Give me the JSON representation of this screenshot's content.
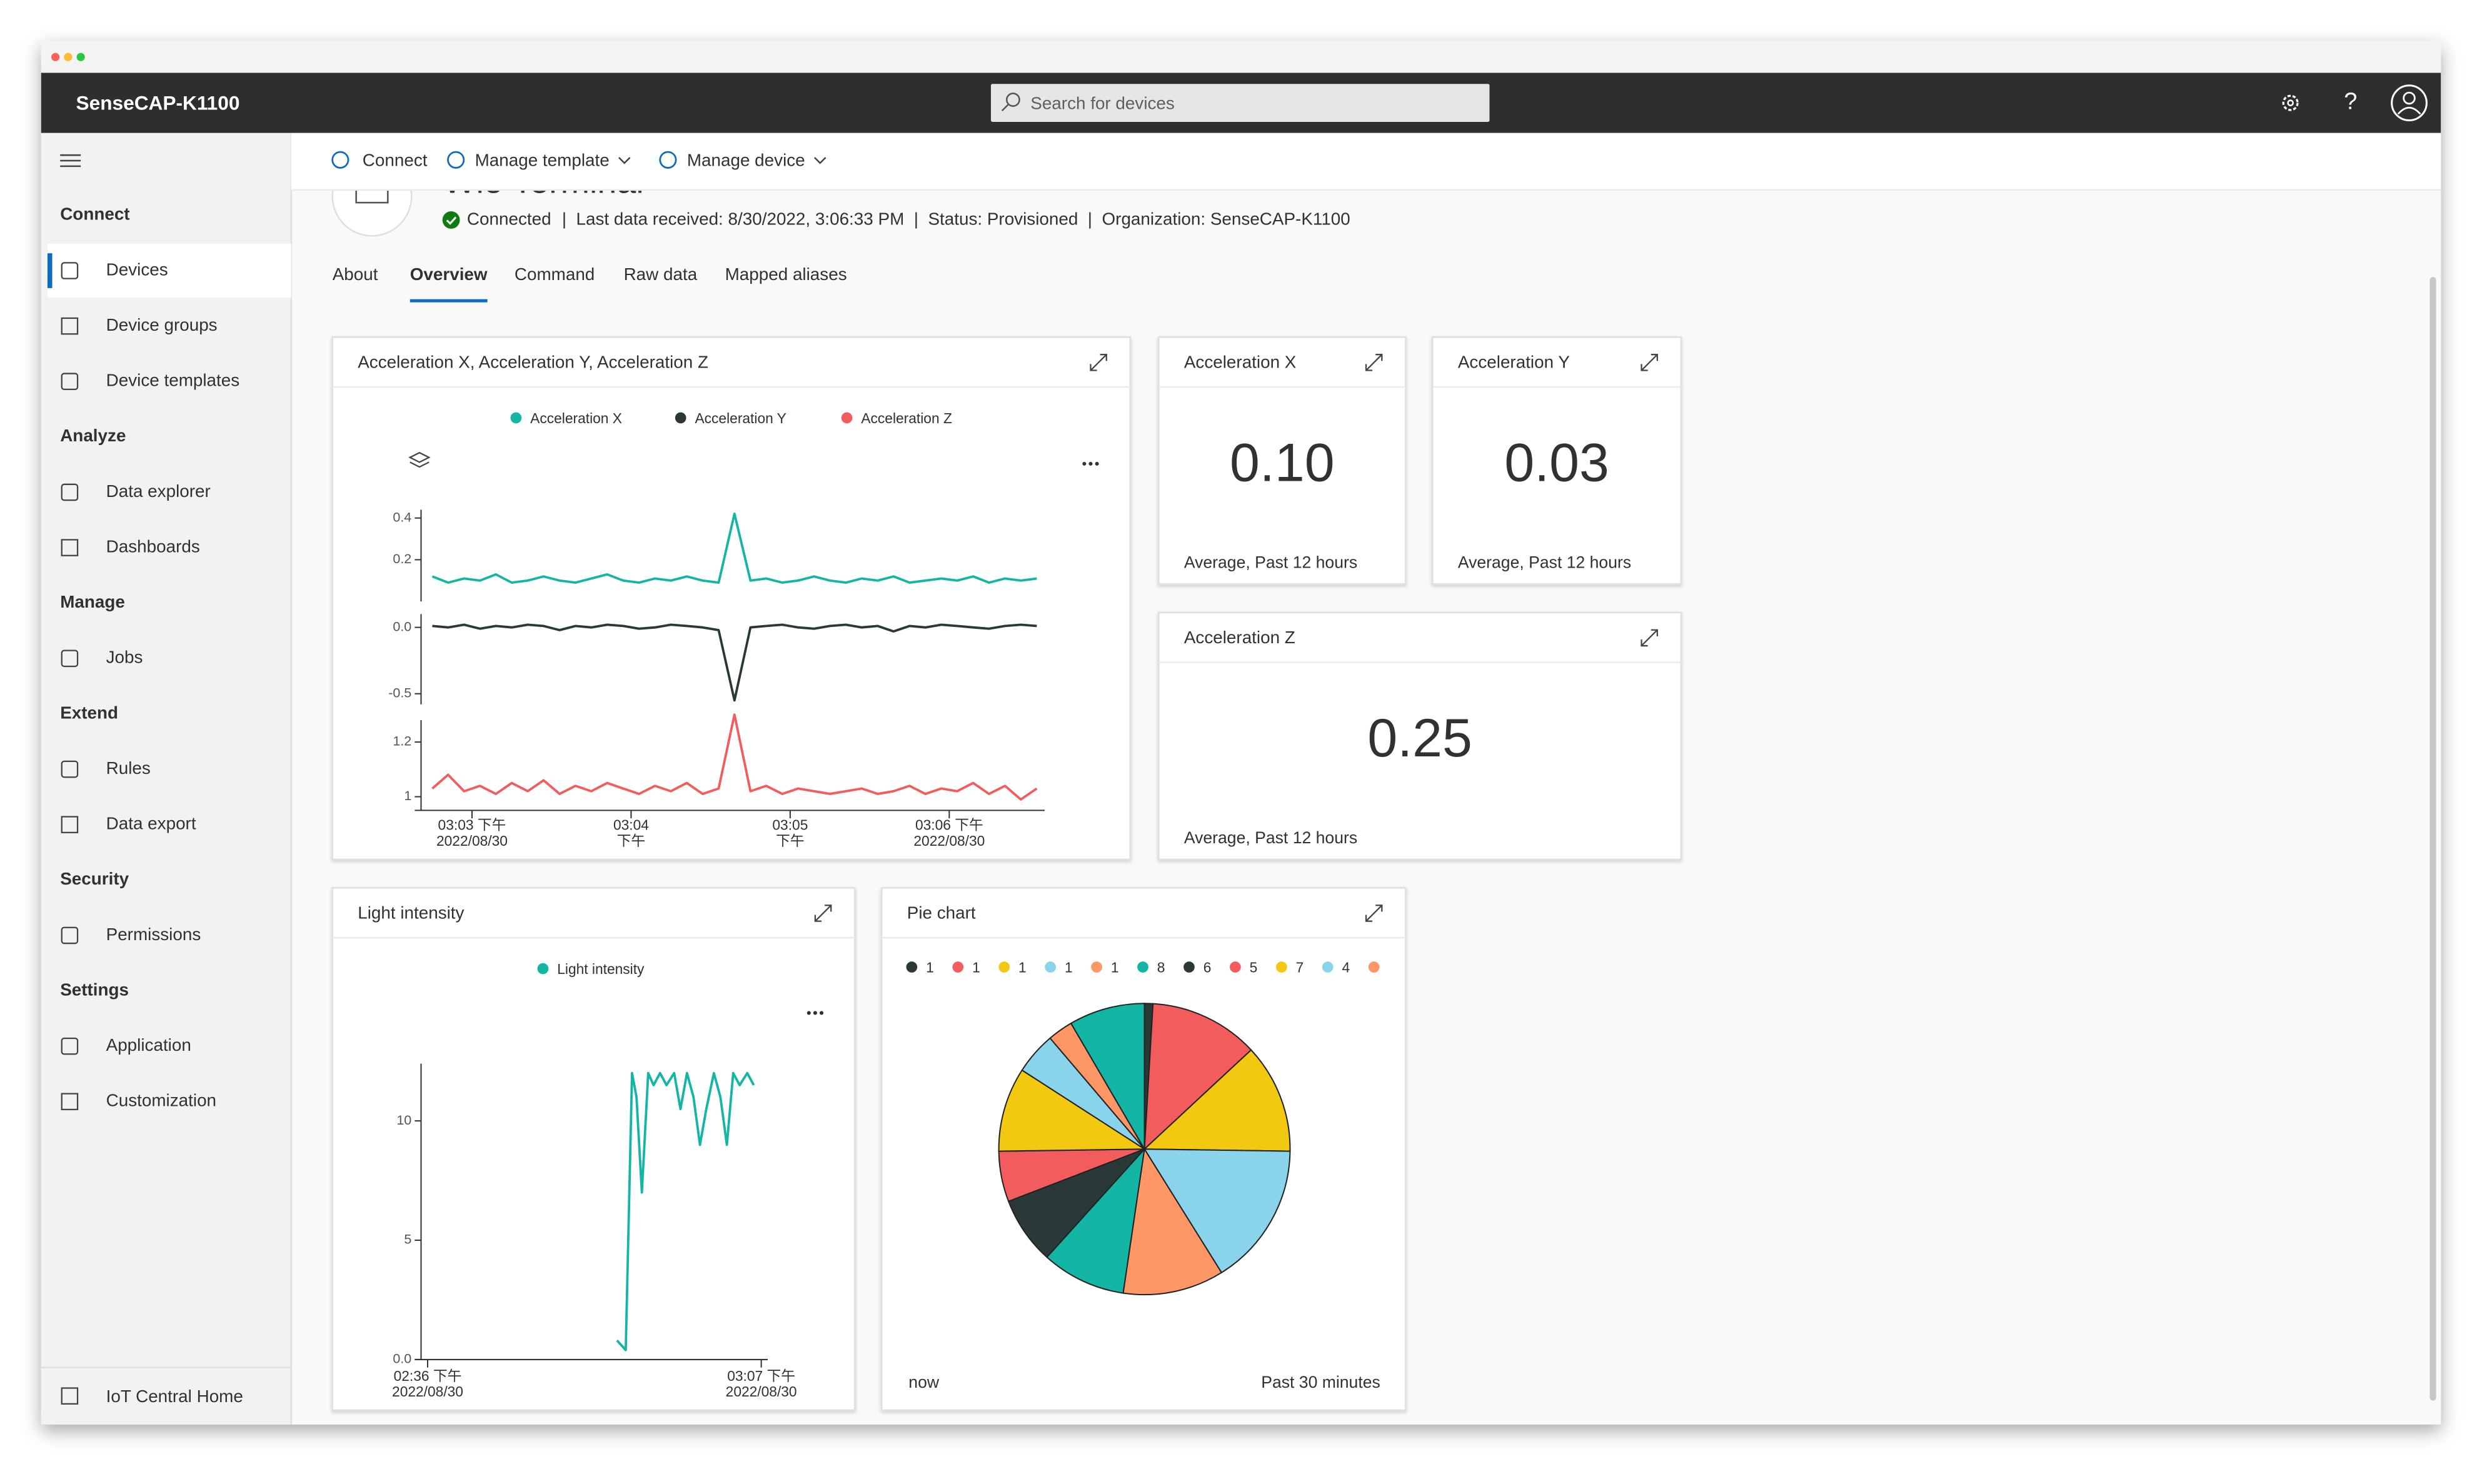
{
  "window": {
    "app_title": "SenseCAP-K1100",
    "search_placeholder": "Search for devices"
  },
  "sidebar": {
    "sections": [
      {
        "title": "Connect",
        "items": [
          "Devices",
          "Device groups",
          "Device templates"
        ]
      },
      {
        "title": "Analyze",
        "items": [
          "Data explorer",
          "Dashboards"
        ]
      },
      {
        "title": "Manage",
        "items": [
          "Jobs"
        ]
      },
      {
        "title": "Extend",
        "items": [
          "Rules",
          "Data export"
        ]
      },
      {
        "title": "Security",
        "items": [
          "Permissions"
        ]
      },
      {
        "title": "Settings",
        "items": [
          "Application",
          "Customization"
        ]
      }
    ],
    "footer": "IoT Central Home"
  },
  "toolbar": [
    "Connect",
    "Manage template",
    "Manage device"
  ],
  "device": {
    "name": "Wio Terminal",
    "status": "Connected",
    "details": "|  Last data received: 8/30/2022, 3:06:33 PM  |  Status: Provisioned  |  Organization: SenseCAP-K1100"
  },
  "tabs": [
    "About",
    "Overview",
    "Command",
    "Raw data",
    "Mapped aliases"
  ],
  "accel_chart": {
    "type": "line",
    "title": "Acceleration X, Acceleration Y, Acceleration Z",
    "x": [
      2.75,
      2.85,
      2.95,
      3.05,
      3.15,
      3.25,
      3.35,
      3.45,
      3.55,
      3.65,
      3.75,
      3.85,
      3.95,
      4.05,
      4.15,
      4.25,
      4.35,
      4.45,
      4.55,
      4.65,
      4.75,
      4.85,
      4.95,
      5.05,
      5.15,
      5.25,
      5.35,
      5.45,
      5.55,
      5.65,
      5.75,
      5.85,
      5.95,
      6.05,
      6.15,
      6.25,
      6.35,
      6.45,
      6.55
    ],
    "xlim": [
      2.64,
      6.6
    ],
    "xticks": [
      {
        "value": 3,
        "label": "03:03 下午",
        "label2": "2022/08/30"
      },
      {
        "value": 4,
        "label": "03:04",
        "label2": "下午"
      },
      {
        "value": 5,
        "label": "03:05",
        "label2": "下午"
      },
      {
        "value": 6,
        "label": "03:06 下午",
        "label2": "2022/08/30"
      }
    ],
    "series": [
      {
        "name": "Acceleration X",
        "color": "#13b5a5",
        "ylim": [
          0,
          0.44
        ],
        "yticks": [
          0.2,
          0.4
        ],
        "values": [
          0.12,
          0.09,
          0.11,
          0.1,
          0.13,
          0.09,
          0.1,
          0.12,
          0.1,
          0.09,
          0.11,
          0.13,
          0.1,
          0.09,
          0.11,
          0.1,
          0.12,
          0.1,
          0.09,
          0.42,
          0.1,
          0.11,
          0.09,
          0.1,
          0.12,
          0.1,
          0.09,
          0.11,
          0.1,
          0.12,
          0.09,
          0.1,
          0.11,
          0.1,
          0.12,
          0.09,
          0.11,
          0.1,
          0.11
        ]
      },
      {
        "name": "Acceleration Y",
        "color": "#2b3838",
        "ylim": [
          -0.58,
          0.1
        ],
        "yticks": [
          {
            "value": 0,
            "label": "0.0"
          },
          -0.5
        ],
        "values": [
          0.01,
          0.0,
          0.02,
          -0.01,
          0.01,
          0.0,
          0.02,
          0.01,
          -0.02,
          0.01,
          0.0,
          0.02,
          0.01,
          -0.01,
          0.0,
          0.02,
          0.01,
          0.0,
          -0.02,
          -0.55,
          0.0,
          0.01,
          0.02,
          0.0,
          -0.01,
          0.01,
          0.02,
          0.0,
          0.01,
          -0.03,
          0.01,
          0.0,
          0.02,
          0.01,
          0.0,
          -0.01,
          0.01,
          0.02,
          0.01
        ]
      },
      {
        "name": "Acceleration Z",
        "color": "#f25c5c",
        "ylim": [
          0.95,
          1.28
        ],
        "yticks": [
          1,
          1.2
        ],
        "values": [
          1.03,
          1.08,
          1.02,
          1.04,
          1.01,
          1.05,
          1.02,
          1.06,
          1.01,
          1.04,
          1.02,
          1.05,
          1.03,
          1.01,
          1.04,
          1.02,
          1.05,
          1.01,
          1.03,
          1.3,
          1.02,
          1.04,
          1.01,
          1.03,
          1.02,
          1.01,
          1.02,
          1.03,
          1.01,
          1.02,
          1.04,
          1.01,
          1.03,
          1.02,
          1.05,
          1.01,
          1.04,
          0.99,
          1.03
        ]
      }
    ]
  },
  "kpi_tiles": [
    {
      "title": "Acceleration X",
      "value": 0.1,
      "value_label": "0.10",
      "caption": "Average, Past 12 hours"
    },
    {
      "title": "Acceleration Y",
      "value": 0.03,
      "value_label": "0.03",
      "caption": "Average, Past 12 hours"
    },
    {
      "title": "Acceleration Z",
      "value": 0.25,
      "value_label": "0.25",
      "caption": "Average, Past 12 hours"
    }
  ],
  "light_chart": {
    "type": "line",
    "title": "Light intensity",
    "xlim": [
      34.8,
      67.6
    ],
    "ylim": [
      0,
      12.4
    ],
    "yticks": [
      {
        "value": 0,
        "label": "0.0"
      },
      5,
      10
    ],
    "xticks": [
      {
        "value": 36,
        "label": "02:36 下午",
        "label2": "2022/08/30"
      },
      {
        "value": 67,
        "label": "03:07 下午",
        "label2": "2022/08/30"
      }
    ],
    "series": [
      {
        "name": "Light intensity",
        "color": "#13b5a5",
        "x": [
          53.6,
          54.4,
          55.0,
          55.4,
          55.9,
          56.5,
          57.0,
          57.6,
          58.2,
          58.9,
          59.5,
          60.1,
          60.7,
          61.3,
          61.9,
          62.6,
          63.2,
          63.8,
          64.4,
          65.0,
          65.7,
          66.3
        ],
        "values": [
          0.8,
          0.4,
          12,
          11,
          7,
          12,
          11.5,
          12,
          11.5,
          12,
          10.5,
          12,
          11,
          9,
          10.5,
          12,
          11,
          9,
          12,
          11.5,
          12,
          11.5
        ]
      }
    ]
  },
  "pie_chart": {
    "type": "pie",
    "title": "Pie chart",
    "legend": [
      {
        "label": "1",
        "color": "#2b3838"
      },
      {
        "label": "1",
        "color": "#f25c5c"
      },
      {
        "label": "1",
        "color": "#f2c811"
      },
      {
        "label": "1",
        "color": "#8ad4eb"
      },
      {
        "label": "1",
        "color": "#fe9666"
      },
      {
        "label": "8",
        "color": "#13b5a5"
      },
      {
        "label": "6",
        "color": "#2b3838"
      },
      {
        "label": "5",
        "color": "#f25c5c"
      },
      {
        "label": "7",
        "color": "#f2c811"
      },
      {
        "label": "4",
        "color": "#8ad4eb"
      },
      {
        "color": "#fe9666"
      }
    ],
    "values": [
      1,
      13,
      13,
      17,
      12,
      10,
      8,
      6,
      10,
      5,
      3,
      9
    ],
    "colors": [
      "#2b3838",
      "#f25c5c",
      "#f2c811",
      "#8ad4eb",
      "#fe9666",
      "#13b5a5",
      "#2b3838",
      "#f25c5c",
      "#f2c811",
      "#8ad4eb",
      "#fe9666",
      "#13b5a5"
    ],
    "footer_left": "now",
    "footer_right": "Past 30 minutes"
  }
}
